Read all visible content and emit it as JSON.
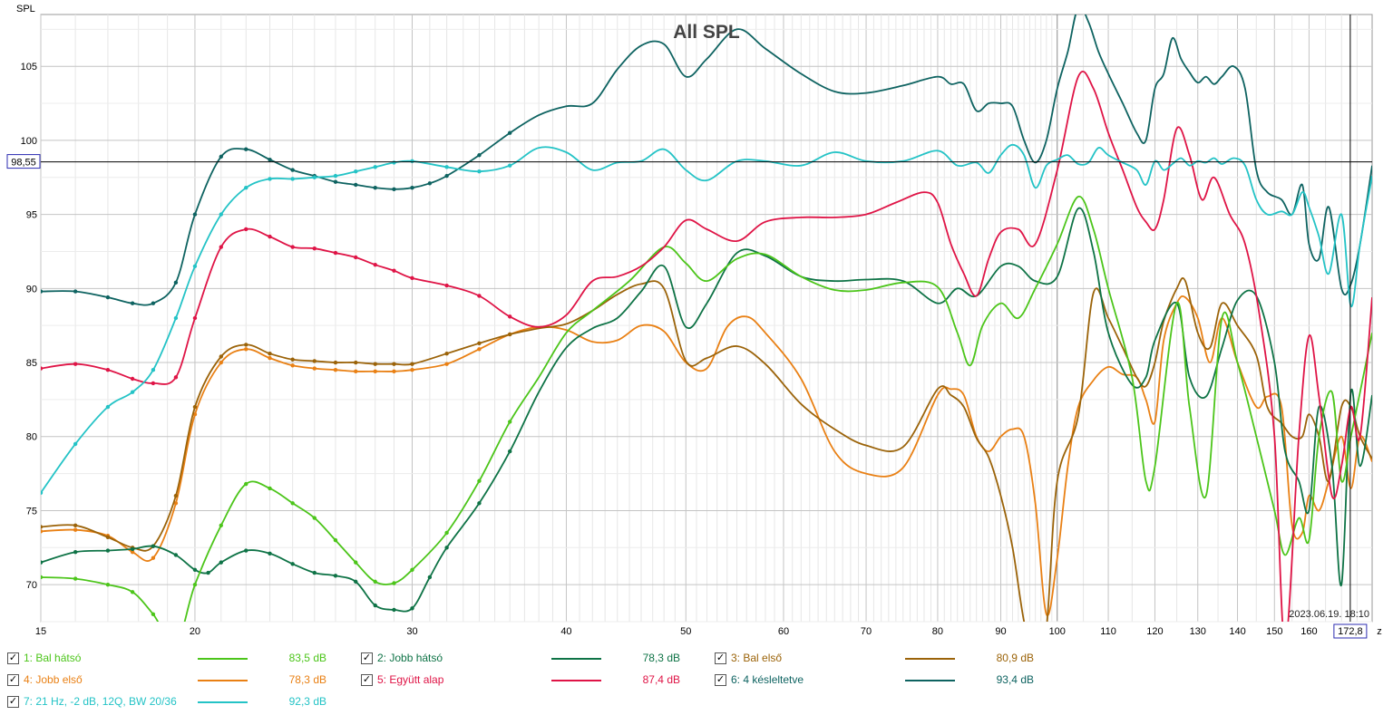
{
  "chart_data": {
    "type": "line",
    "title": "All SPL",
    "ylabel": "SPL",
    "xlabel_unit": "Hz",
    "x_scale": "log",
    "xlim": [
      15,
      180
    ],
    "ylim": [
      67.5,
      108.5
    ],
    "grid": true,
    "x_ticks": [
      15,
      20,
      30,
      40,
      50,
      60,
      70,
      80,
      90,
      100,
      110,
      120,
      130,
      140,
      150,
      160
    ],
    "x_tick_labels": [
      "15",
      "20",
      "30",
      "40",
      "50",
      "60",
      "70",
      "80",
      "90",
      "100",
      "110",
      "120",
      "130",
      "140",
      "150",
      "160"
    ],
    "y_ticks": [
      70,
      75,
      80,
      85,
      90,
      95,
      100,
      105
    ],
    "y_tick_labels": [
      "70",
      "75",
      "80",
      "85",
      "90",
      "95",
      "100",
      "105"
    ],
    "cursor_y": 98.55,
    "cursor_y_label": "98,55",
    "cursor_x": 172.8,
    "cursor_x_label": "172,8",
    "timestamp": "2023.06.19. 18:10",
    "series": [
      {
        "id": 1,
        "name": "1: Bal hátsó",
        "value_label": "83,5 dB",
        "color": "#4cc51a",
        "x": [
          15,
          16,
          17,
          17.8,
          18.5,
          19.3,
          20,
          21,
          22,
          23,
          24,
          25,
          26,
          27,
          28,
          29,
          30,
          32,
          34,
          36,
          38,
          40,
          42,
          45,
          48,
          50,
          52,
          55,
          58,
          62,
          66,
          70,
          75,
          80,
          83,
          85,
          87,
          90,
          93,
          96,
          100,
          104,
          107,
          110,
          115,
          118,
          120,
          125,
          128,
          132,
          136,
          140,
          145,
          150,
          153,
          157,
          160,
          163,
          167,
          170,
          173,
          176,
          180
        ],
        "y": [
          70.5,
          70.4,
          70,
          69.5,
          68,
          66,
          70,
          74,
          76.8,
          76.5,
          75.5,
          74.5,
          73,
          71.5,
          70.2,
          70.1,
          71,
          73.5,
          77,
          81,
          84,
          87,
          88.5,
          90.5,
          92.8,
          91.7,
          90.5,
          92,
          92.3,
          90.8,
          89.9,
          89.9,
          90.4,
          90.1,
          87,
          84.8,
          87.5,
          89,
          88,
          90,
          93,
          96.2,
          94,
          90,
          84,
          77,
          78,
          89,
          82,
          76,
          88,
          85,
          80,
          75,
          72,
          74.5,
          73,
          80,
          83,
          77,
          80,
          83,
          87
        ]
      },
      {
        "id": 2,
        "name": "2: Jobb hátsó",
        "value_label": "78,3 dB",
        "color": "#0e7346",
        "x": [
          15,
          16,
          17,
          17.8,
          18.5,
          19.3,
          20,
          20.5,
          21,
          22,
          23,
          24,
          25,
          26,
          27,
          28,
          29,
          30,
          31,
          32,
          34,
          36,
          38,
          40,
          42,
          44,
          46,
          48,
          50,
          52,
          55,
          58,
          62,
          66,
          70,
          75,
          80,
          83,
          86,
          90,
          93,
          96,
          100,
          104,
          107,
          110,
          115,
          118,
          120,
          125,
          128,
          132,
          136,
          140,
          145,
          150,
          153,
          157,
          160,
          163,
          167,
          170,
          173,
          176,
          180
        ],
        "y": [
          71.5,
          72.2,
          72.3,
          72.4,
          72.6,
          72,
          71,
          70.8,
          71.5,
          72.3,
          72.1,
          71.4,
          70.8,
          70.6,
          70.2,
          68.6,
          68.3,
          68.4,
          70.5,
          72.5,
          75.5,
          79,
          83,
          86,
          87.3,
          88,
          89.8,
          91.5,
          87.4,
          89,
          92.4,
          92.2,
          90.8,
          90.5,
          90.6,
          90.5,
          89,
          90,
          89.5,
          91.5,
          91.5,
          90.5,
          90.8,
          95.4,
          92.5,
          87,
          83.5,
          84,
          86.5,
          89,
          84,
          82.7,
          86,
          89.2,
          89.5,
          85,
          79,
          77,
          75,
          82,
          78,
          70,
          83,
          78,
          82.8
        ]
      },
      {
        "id": 3,
        "name": "3: Bal első",
        "value_label": "80,9 dB",
        "color": "#9b6309",
        "x": [
          15,
          16,
          17,
          17.8,
          18.5,
          19.3,
          20,
          21,
          22,
          23,
          24,
          25,
          26,
          27,
          28,
          29,
          30,
          32,
          34,
          36,
          38,
          40,
          42,
          44,
          46,
          48,
          50,
          52,
          55,
          58,
          62,
          66,
          70,
          75,
          80,
          82,
          84,
          86,
          88,
          90,
          92,
          94,
          96,
          98,
          100,
          104,
          107,
          110,
          113,
          116,
          118,
          120,
          122,
          125,
          127,
          130,
          133,
          136,
          140,
          145,
          148,
          152,
          155,
          158,
          160,
          163,
          166,
          170,
          173,
          176,
          180
        ],
        "y": [
          73.9,
          74,
          73.2,
          72.5,
          72.6,
          76,
          82,
          85.4,
          86.2,
          85.6,
          85.2,
          85.1,
          85,
          85,
          84.9,
          84.9,
          84.9,
          85.6,
          86.3,
          86.9,
          87.3,
          87.6,
          88.5,
          89.6,
          90.3,
          90,
          85.1,
          85.3,
          86.1,
          84.9,
          82.2,
          80.5,
          79.4,
          79.3,
          83.2,
          82.8,
          82,
          79.9,
          78.6,
          76,
          72.5,
          67.5,
          65,
          67,
          77,
          81.4,
          89.7,
          88,
          86,
          84,
          83.4,
          85,
          87.8,
          90,
          90.5,
          87,
          86,
          89,
          87.5,
          85.5,
          82,
          80.9,
          80,
          80,
          81.5,
          80,
          77,
          82,
          82,
          80,
          78.5
        ]
      },
      {
        "id": 4,
        "name": "4: Jobb első",
        "value_label": "78,3 dB",
        "color": "#e98014",
        "x": [
          15,
          16,
          17,
          17.8,
          18.5,
          19.3,
          20,
          21,
          22,
          23,
          24,
          25,
          26,
          27,
          28,
          29,
          30,
          32,
          34,
          36,
          38,
          40,
          42,
          44,
          46,
          48,
          50,
          52,
          54,
          56,
          58,
          62,
          66,
          70,
          75,
          80,
          82,
          84,
          86,
          88,
          90,
          92,
          94,
          96,
          98,
          100,
          102,
          104,
          107,
          110,
          113,
          116,
          118,
          120,
          122,
          125,
          127,
          130,
          133,
          136,
          140,
          145,
          148,
          152,
          155,
          158,
          160,
          163,
          166,
          170,
          173,
          176,
          180
        ],
        "y": [
          73.6,
          73.7,
          73.3,
          72.2,
          71.8,
          75.5,
          81.5,
          85,
          85.9,
          85.3,
          84.8,
          84.6,
          84.5,
          84.4,
          84.4,
          84.4,
          84.5,
          84.9,
          85.9,
          86.9,
          87.4,
          87.2,
          86.4,
          86.5,
          87.5,
          87.1,
          85,
          84.6,
          87.4,
          88.1,
          87,
          83.9,
          79,
          77.5,
          77.9,
          82.8,
          83.2,
          82.8,
          80,
          79,
          80,
          80.5,
          80,
          75.5,
          68,
          71.8,
          78,
          82,
          83.8,
          84.7,
          84.2,
          84,
          82.5,
          81,
          86.5,
          89,
          89.4,
          88,
          85,
          88,
          85,
          82,
          82.7,
          82,
          74,
          73.5,
          76,
          75,
          77,
          80,
          76.5,
          80,
          78.3
        ]
      },
      {
        "id": 5,
        "name": "5: Együtt alap",
        "value_label": "87,4 dB",
        "color": "#df1446",
        "x": [
          15,
          16,
          17,
          17.8,
          18.5,
          19.3,
          20,
          21,
          22,
          23,
          24,
          25,
          26,
          27,
          28,
          29,
          30,
          32,
          34,
          36,
          38,
          40,
          42,
          44,
          46,
          48,
          50,
          52,
          55,
          58,
          62,
          66,
          70,
          74,
          78,
          80,
          82,
          84,
          86,
          88,
          90,
          93,
          96,
          100,
          104,
          107,
          110,
          113,
          116,
          118,
          120,
          122,
          125,
          128,
          131,
          134,
          138,
          142,
          146,
          150,
          153,
          157,
          160,
          163,
          167,
          170,
          173,
          176,
          180
        ],
        "y": [
          84.6,
          84.9,
          84.5,
          83.9,
          83.6,
          84,
          88,
          92.8,
          94,
          93.5,
          92.8,
          92.7,
          92.4,
          92.1,
          91.6,
          91.2,
          90.7,
          90.2,
          89.5,
          88.1,
          87.4,
          88.2,
          90.5,
          90.8,
          91.5,
          92.8,
          94.6,
          94,
          93.2,
          94.5,
          94.8,
          94.8,
          95,
          95.8,
          96.5,
          95.8,
          93,
          91,
          89.5,
          92,
          93.8,
          94,
          93,
          98,
          104.3,
          103.5,
          100.5,
          98,
          95.5,
          94.5,
          94,
          96,
          100.8,
          99,
          96,
          97.5,
          95,
          93,
          88,
          80,
          66,
          80,
          86.8,
          82.7,
          76,
          78,
          82,
          80,
          89.4
        ]
      },
      {
        "id": 6,
        "name": "6: 4 késleltetve",
        "value_label": "93,4 dB",
        "color": "#0e6361",
        "x": [
          15,
          16,
          17,
          17.8,
          18.5,
          19.3,
          20,
          21,
          22,
          23,
          24,
          25,
          26,
          27,
          28,
          29,
          30,
          31,
          32,
          34,
          36,
          38,
          40,
          42,
          44,
          46,
          48,
          50,
          52,
          55,
          58,
          62,
          66,
          70,
          75,
          80,
          82,
          84,
          86,
          88,
          90,
          92,
          94,
          96,
          98,
          100,
          102,
          104,
          106,
          108,
          110,
          113,
          116,
          118,
          120,
          122,
          124,
          126,
          128,
          130,
          132,
          134,
          136,
          139,
          142,
          145,
          148,
          152,
          155,
          158,
          160,
          163,
          166,
          170,
          173,
          176,
          180
        ],
        "y": [
          89.8,
          89.8,
          89.4,
          89,
          89,
          90.4,
          95,
          98.9,
          99.4,
          98.7,
          98,
          97.6,
          97.2,
          97,
          96.8,
          96.7,
          96.8,
          97.1,
          97.6,
          99,
          100.5,
          101.7,
          102.3,
          102.5,
          104.8,
          106.4,
          106.5,
          104.3,
          105.5,
          107.5,
          106.2,
          104.5,
          103.3,
          103.2,
          103.7,
          104.3,
          103.8,
          103.8,
          102,
          102.5,
          102.5,
          102.3,
          100,
          98.5,
          100,
          103.5,
          106,
          109,
          108,
          106,
          104.5,
          102.5,
          100.5,
          100,
          103.5,
          104.5,
          106.9,
          105.5,
          104.6,
          103.9,
          104.3,
          103.8,
          104.3,
          105,
          103.5,
          98,
          96.5,
          96,
          95,
          97,
          93,
          92,
          95.5,
          90,
          90.3,
          93,
          98.3
        ]
      },
      {
        "id": 7,
        "name": "7: 21 Hz, -2 dB, 12Q, BW 20/36",
        "value_label": "92,3 dB",
        "color": "#24c3c6",
        "x": [
          15,
          16,
          17,
          17.8,
          18.5,
          19.3,
          20,
          21,
          22,
          23,
          24,
          25,
          26,
          27,
          28,
          29,
          30,
          32,
          34,
          36,
          38,
          40,
          42,
          44,
          46,
          48,
          50,
          52,
          55,
          58,
          62,
          66,
          70,
          75,
          80,
          83,
          86,
          88,
          90,
          92,
          94,
          96,
          98,
          100,
          102,
          104,
          106,
          108,
          110,
          113,
          116,
          118,
          120,
          122,
          124,
          126,
          128,
          130,
          132,
          134,
          136,
          139,
          142,
          145,
          148,
          152,
          155,
          158,
          160,
          163,
          166,
          170,
          173,
          176,
          180
        ],
        "y": [
          76.2,
          79.5,
          82,
          83,
          84.5,
          88,
          91.5,
          95,
          96.8,
          97.4,
          97.4,
          97.5,
          97.6,
          97.9,
          98.2,
          98.5,
          98.6,
          98.2,
          97.9,
          98.3,
          99.5,
          99.2,
          98,
          98.5,
          98.6,
          99.4,
          98,
          97.3,
          98.6,
          98.6,
          98.3,
          99.2,
          98.6,
          98.6,
          99.3,
          98.3,
          98.5,
          97.8,
          99,
          99.7,
          99,
          96.8,
          98.3,
          98.7,
          99,
          98.4,
          98.5,
          99.5,
          99,
          98.5,
          98,
          97,
          98.6,
          98,
          98.4,
          98.8,
          98.3,
          98.6,
          98.5,
          98.8,
          98.4,
          98.8,
          98.3,
          96,
          95,
          95.2,
          95,
          96.5,
          95.5,
          93.5,
          91,
          95,
          88.8,
          93,
          97.6
        ]
      }
    ]
  }
}
